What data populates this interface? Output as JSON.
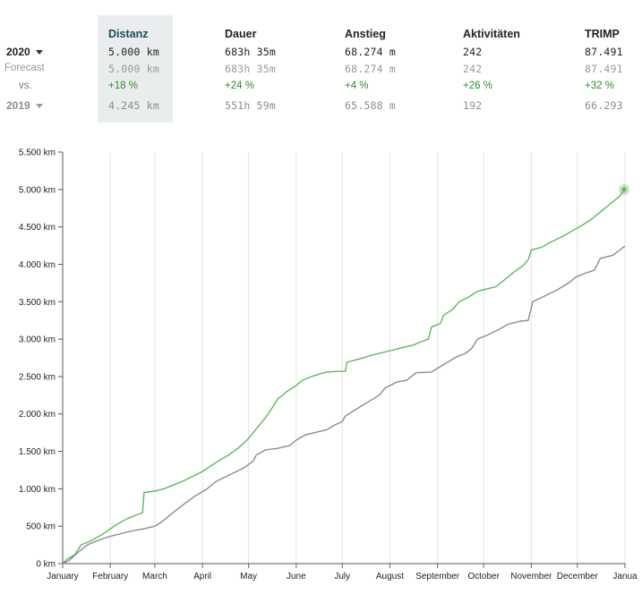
{
  "stats": {
    "headers": {
      "distance": "Distanz",
      "duration": "Dauer",
      "elevation": "Anstieg",
      "activities": "Aktivitäten",
      "trimp": "TRIMP"
    },
    "rows": {
      "current": {
        "label": "2020",
        "distance": "5.000 km",
        "duration": "683h 35m",
        "elevation": "68.274 m",
        "activities": "242",
        "trimp": "87.491"
      },
      "forecast": {
        "label": "Forecast",
        "distance": "5.000 km",
        "duration": "683h 35m",
        "elevation": "68.274 m",
        "activities": "242",
        "trimp": "87.491"
      },
      "vs": {
        "label": "vs.",
        "distance": "+18 %",
        "duration": "+24 %",
        "elevation": "+4 %",
        "activities": "+26 %",
        "trimp": "+32 %"
      },
      "previous": {
        "label": "2019",
        "distance": "4.245 km",
        "duration": "551h 59m",
        "elevation": "65.588 m",
        "activities": "192",
        "trimp": "66.293"
      }
    },
    "colors": {
      "current": "#222222",
      "vs_positive": "#2e8b2e",
      "previous": "#8d8d8d",
      "selected_column_bg": "#e9edee"
    }
  },
  "chart_data": {
    "type": "line",
    "title": "",
    "xlabel": "",
    "ylabel": "",
    "x_unit": "day of year",
    "x_ticks": [
      {
        "day": 0,
        "label": "January"
      },
      {
        "day": 31,
        "label": "February"
      },
      {
        "day": 60,
        "label": "March"
      },
      {
        "day": 91,
        "label": "April"
      },
      {
        "day": 121,
        "label": "May"
      },
      {
        "day": 152,
        "label": "June"
      },
      {
        "day": 182,
        "label": "July"
      },
      {
        "day": 213,
        "label": "August"
      },
      {
        "day": 244,
        "label": "September"
      },
      {
        "day": 274,
        "label": "October"
      },
      {
        "day": 305,
        "label": "November"
      },
      {
        "day": 335,
        "label": "December"
      },
      {
        "day": 366,
        "label": "Janua"
      }
    ],
    "xlim": [
      0,
      366
    ],
    "ylim": [
      0,
      5500
    ],
    "y_ticks": [
      {
        "value": 0,
        "label": "0 km"
      },
      {
        "value": 500,
        "label": "500 km"
      },
      {
        "value": 1000,
        "label": "1.000 km"
      },
      {
        "value": 1500,
        "label": "1.500 km"
      },
      {
        "value": 2000,
        "label": "2.000 km"
      },
      {
        "value": 2500,
        "label": "2.500 km"
      },
      {
        "value": 3000,
        "label": "3.000 km"
      },
      {
        "value": 3500,
        "label": "3.500 km"
      },
      {
        "value": 4000,
        "label": "4.000 km"
      },
      {
        "value": 4500,
        "label": "4.500 km"
      },
      {
        "value": 5000,
        "label": "5.000 km"
      },
      {
        "value": 5500,
        "label": "5.500 km"
      }
    ],
    "grid": {
      "vertical": true,
      "horizontal": false
    },
    "legend": "none",
    "series": [
      {
        "name": "2020",
        "color": "#5cb85c",
        "points": [
          [
            0,
            0
          ],
          [
            3,
            60
          ],
          [
            8,
            120
          ],
          [
            12,
            250
          ],
          [
            18,
            300
          ],
          [
            25,
            380
          ],
          [
            30,
            450
          ],
          [
            35,
            520
          ],
          [
            42,
            600
          ],
          [
            48,
            650
          ],
          [
            52,
            680
          ],
          [
            53,
            950
          ],
          [
            60,
            970
          ],
          [
            66,
            1000
          ],
          [
            72,
            1050
          ],
          [
            78,
            1100
          ],
          [
            84,
            1160
          ],
          [
            90,
            1220
          ],
          [
            96,
            1300
          ],
          [
            102,
            1380
          ],
          [
            108,
            1450
          ],
          [
            114,
            1540
          ],
          [
            120,
            1650
          ],
          [
            124,
            1750
          ],
          [
            128,
            1850
          ],
          [
            132,
            1950
          ],
          [
            136,
            2070
          ],
          [
            140,
            2200
          ],
          [
            146,
            2300
          ],
          [
            152,
            2380
          ],
          [
            156,
            2450
          ],
          [
            162,
            2500
          ],
          [
            168,
            2540
          ],
          [
            172,
            2560
          ],
          [
            180,
            2570
          ],
          [
            184,
            2570
          ],
          [
            185,
            2690
          ],
          [
            194,
            2740
          ],
          [
            202,
            2790
          ],
          [
            212,
            2840
          ],
          [
            220,
            2880
          ],
          [
            228,
            2920
          ],
          [
            234,
            2970
          ],
          [
            238,
            3000
          ],
          [
            240,
            3160
          ],
          [
            246,
            3210
          ],
          [
            248,
            3320
          ],
          [
            254,
            3400
          ],
          [
            258,
            3500
          ],
          [
            264,
            3560
          ],
          [
            270,
            3640
          ],
          [
            276,
            3670
          ],
          [
            282,
            3700
          ],
          [
            288,
            3800
          ],
          [
            294,
            3900
          ],
          [
            300,
            3990
          ],
          [
            303,
            4060
          ],
          [
            305,
            4190
          ],
          [
            312,
            4230
          ],
          [
            318,
            4300
          ],
          [
            326,
            4380
          ],
          [
            332,
            4450
          ],
          [
            338,
            4520
          ],
          [
            344,
            4600
          ],
          [
            350,
            4700
          ],
          [
            356,
            4800
          ],
          [
            362,
            4900
          ],
          [
            366,
            5000
          ]
        ]
      },
      {
        "name": "2019",
        "color": "#8c8c8c",
        "points": [
          [
            0,
            0
          ],
          [
            4,
            40
          ],
          [
            10,
            150
          ],
          [
            16,
            250
          ],
          [
            22,
            300
          ],
          [
            30,
            360
          ],
          [
            38,
            400
          ],
          [
            46,
            440
          ],
          [
            54,
            470
          ],
          [
            60,
            500
          ],
          [
            64,
            550
          ],
          [
            70,
            650
          ],
          [
            78,
            780
          ],
          [
            86,
            900
          ],
          [
            94,
            1000
          ],
          [
            100,
            1100
          ],
          [
            106,
            1160
          ],
          [
            112,
            1220
          ],
          [
            118,
            1280
          ],
          [
            124,
            1370
          ],
          [
            126,
            1450
          ],
          [
            132,
            1520
          ],
          [
            140,
            1540
          ],
          [
            148,
            1580
          ],
          [
            152,
            1650
          ],
          [
            158,
            1720
          ],
          [
            166,
            1760
          ],
          [
            172,
            1790
          ],
          [
            176,
            1840
          ],
          [
            182,
            1900
          ],
          [
            184,
            1970
          ],
          [
            190,
            2050
          ],
          [
            198,
            2150
          ],
          [
            206,
            2250
          ],
          [
            210,
            2350
          ],
          [
            218,
            2430
          ],
          [
            224,
            2450
          ],
          [
            230,
            2550
          ],
          [
            240,
            2560
          ],
          [
            248,
            2660
          ],
          [
            256,
            2760
          ],
          [
            262,
            2810
          ],
          [
            266,
            2870
          ],
          [
            270,
            3000
          ],
          [
            276,
            3050
          ],
          [
            284,
            3130
          ],
          [
            290,
            3200
          ],
          [
            298,
            3240
          ],
          [
            303,
            3250
          ],
          [
            306,
            3500
          ],
          [
            314,
            3580
          ],
          [
            322,
            3660
          ],
          [
            330,
            3760
          ],
          [
            334,
            3830
          ],
          [
            340,
            3880
          ],
          [
            346,
            3920
          ],
          [
            350,
            4080
          ],
          [
            358,
            4120
          ],
          [
            366,
            4245
          ]
        ]
      }
    ]
  }
}
